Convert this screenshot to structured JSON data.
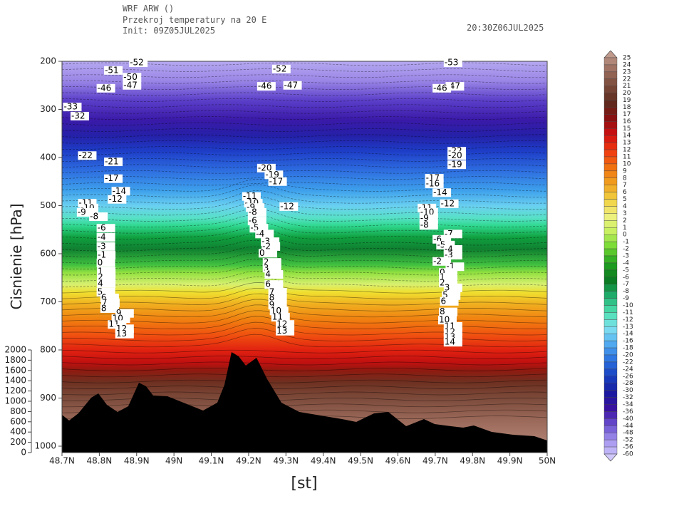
{
  "header": {
    "model": "WRF ARW ()",
    "title": "Przekroj temperatury na 20 E",
    "init": "Init: 09Z05JUL2025",
    "valid": "20:30Z06JUL2025"
  },
  "chart_data": {
    "type": "contour",
    "x_label": "[st]",
    "y_label": "Cisnienie [hPa]",
    "xlim": [
      48.7,
      50
    ],
    "xticks": [
      {
        "value": 48.7,
        "label": "48.7N"
      },
      {
        "value": 48.8,
        "label": "48.8N"
      },
      {
        "value": 48.9,
        "label": "48.9N"
      },
      {
        "value": 49,
        "label": "49N"
      },
      {
        "value": 49.1,
        "label": "49.1N"
      },
      {
        "value": 49.2,
        "label": "49.2N"
      },
      {
        "value": 49.3,
        "label": "49.3N"
      },
      {
        "value": 49.4,
        "label": "49.4N"
      },
      {
        "value": 49.5,
        "label": "49.5N"
      },
      {
        "value": 49.6,
        "label": "49.6N"
      },
      {
        "value": 49.7,
        "label": "49.7N"
      },
      {
        "value": 49.8,
        "label": "49.8N"
      },
      {
        "value": 49.9,
        "label": "49.9N"
      },
      {
        "value": 50,
        "label": "50N"
      }
    ],
    "ylim": [
      1000,
      200
    ],
    "yticks": [
      200,
      300,
      400,
      500,
      600,
      700,
      800,
      900,
      1000
    ],
    "hlim": [
      0,
      2000
    ],
    "hticks": [
      0,
      200,
      400,
      600,
      800,
      1000,
      1200,
      1400,
      1600,
      1800,
      2000
    ],
    "contour_labels": [
      {
        "value": -52,
        "lat": 48.897,
        "p": 203
      },
      {
        "value": -51,
        "lat": 48.83,
        "p": 219
      },
      {
        "value": -50,
        "lat": 48.88,
        "p": 233
      },
      {
        "value": -47,
        "lat": 48.88,
        "p": 250
      },
      {
        "value": -46,
        "lat": 48.81,
        "p": 256
      },
      {
        "value": -52,
        "lat": 49.28,
        "p": 216
      },
      {
        "value": -47,
        "lat": 49.31,
        "p": 250
      },
      {
        "value": -46,
        "lat": 49.24,
        "p": 252
      },
      {
        "value": -53,
        "lat": 49.74,
        "p": 203
      },
      {
        "value": -47,
        "lat": 49.745,
        "p": 252
      },
      {
        "value": -46,
        "lat": 49.71,
        "p": 256
      },
      {
        "value": -33,
        "lat": 48.72,
        "p": 295
      },
      {
        "value": -32,
        "lat": 48.74,
        "p": 314
      },
      {
        "value": -22,
        "lat": 48.76,
        "p": 396
      },
      {
        "value": -21,
        "lat": 48.83,
        "p": 409
      },
      {
        "value": -17,
        "lat": 48.83,
        "p": 444
      },
      {
        "value": -14,
        "lat": 48.85,
        "p": 470
      },
      {
        "value": -12,
        "lat": 48.84,
        "p": 487
      },
      {
        "value": -11,
        "lat": 48.76,
        "p": 495
      },
      {
        "value": -10,
        "lat": 48.765,
        "p": 505
      },
      {
        "value": -9,
        "lat": 48.757,
        "p": 514
      },
      {
        "value": -8,
        "lat": 48.79,
        "p": 523
      },
      {
        "value": -6,
        "lat": 48.81,
        "p": 547
      },
      {
        "value": -4,
        "lat": 48.81,
        "p": 566
      },
      {
        "value": -3,
        "lat": 48.81,
        "p": 585
      },
      {
        "value": -1,
        "lat": 48.811,
        "p": 603
      },
      {
        "value": 0,
        "lat": 48.81,
        "p": 619
      },
      {
        "value": 1,
        "lat": 48.811,
        "p": 637
      },
      {
        "value": 2,
        "lat": 48.811,
        "p": 649
      },
      {
        "value": 4,
        "lat": 48.811,
        "p": 662
      },
      {
        "value": 5,
        "lat": 48.81,
        "p": 680
      },
      {
        "value": 6,
        "lat": 48.82,
        "p": 692
      },
      {
        "value": 7,
        "lat": 48.822,
        "p": 702
      },
      {
        "value": 8,
        "lat": 48.82,
        "p": 714
      },
      {
        "value": 9,
        "lat": 48.86,
        "p": 724
      },
      {
        "value": 10,
        "lat": 48.85,
        "p": 735
      },
      {
        "value": 11,
        "lat": 48.84,
        "p": 747
      },
      {
        "value": 12,
        "lat": 48.86,
        "p": 756
      },
      {
        "value": 13,
        "lat": 48.86,
        "p": 767
      },
      {
        "value": -20,
        "lat": 49.24,
        "p": 422
      },
      {
        "value": -19,
        "lat": 49.26,
        "p": 436
      },
      {
        "value": -17,
        "lat": 49.27,
        "p": 450
      },
      {
        "value": -12,
        "lat": 49.3,
        "p": 502
      },
      {
        "value": -11,
        "lat": 49.2,
        "p": 481
      },
      {
        "value": -10,
        "lat": 49.205,
        "p": 495
      },
      {
        "value": -9,
        "lat": 49.21,
        "p": 504
      },
      {
        "value": -8,
        "lat": 49.215,
        "p": 514
      },
      {
        "value": -6,
        "lat": 49.215,
        "p": 532
      },
      {
        "value": -5,
        "lat": 49.22,
        "p": 547
      },
      {
        "value": -4,
        "lat": 49.235,
        "p": 559
      },
      {
        "value": -3,
        "lat": 49.25,
        "p": 575
      },
      {
        "value": -2,
        "lat": 49.252,
        "p": 585
      },
      {
        "value": 0,
        "lat": 49.244,
        "p": 599
      },
      {
        "value": 2,
        "lat": 49.255,
        "p": 618
      },
      {
        "value": 3,
        "lat": 49.255,
        "p": 630
      },
      {
        "value": 4,
        "lat": 49.26,
        "p": 643
      },
      {
        "value": 6,
        "lat": 49.26,
        "p": 664
      },
      {
        "value": 7,
        "lat": 49.27,
        "p": 680
      },
      {
        "value": 8,
        "lat": 49.27,
        "p": 692
      },
      {
        "value": 9,
        "lat": 49.27,
        "p": 707
      },
      {
        "value": 10,
        "lat": 49.274,
        "p": 719
      },
      {
        "value": 11,
        "lat": 49.278,
        "p": 732
      },
      {
        "value": 12,
        "lat": 49.29,
        "p": 747
      },
      {
        "value": 13,
        "lat": 49.29,
        "p": 761
      },
      {
        "value": -22,
        "lat": 49.75,
        "p": 387
      },
      {
        "value": -20,
        "lat": 49.75,
        "p": 396
      },
      {
        "value": -19,
        "lat": 49.75,
        "p": 415
      },
      {
        "value": -17,
        "lat": 49.69,
        "p": 443
      },
      {
        "value": -16,
        "lat": 49.69,
        "p": 455
      },
      {
        "value": -14,
        "lat": 49.71,
        "p": 473
      },
      {
        "value": -12,
        "lat": 49.73,
        "p": 496
      },
      {
        "value": -11,
        "lat": 49.67,
        "p": 505
      },
      {
        "value": -10,
        "lat": 49.675,
        "p": 514
      },
      {
        "value": -9,
        "lat": 49.675,
        "p": 527
      },
      {
        "value": -8,
        "lat": 49.675,
        "p": 541
      },
      {
        "value": -7,
        "lat": 49.74,
        "p": 559
      },
      {
        "value": -6,
        "lat": 49.71,
        "p": 570
      },
      {
        "value": -5,
        "lat": 49.72,
        "p": 582
      },
      {
        "value": -4,
        "lat": 49.74,
        "p": 591
      },
      {
        "value": -3,
        "lat": 49.74,
        "p": 603
      },
      {
        "value": -2,
        "lat": 49.71,
        "p": 616
      },
      {
        "value": -1,
        "lat": 49.745,
        "p": 627
      },
      {
        "value": 0,
        "lat": 49.727,
        "p": 639
      },
      {
        "value": 1,
        "lat": 49.727,
        "p": 649
      },
      {
        "value": 2,
        "lat": 49.727,
        "p": 661
      },
      {
        "value": 3,
        "lat": 49.74,
        "p": 671
      },
      {
        "value": 5,
        "lat": 49.735,
        "p": 687
      },
      {
        "value": 6,
        "lat": 49.73,
        "p": 699
      },
      {
        "value": 8,
        "lat": 49.727,
        "p": 721
      },
      {
        "value": 10,
        "lat": 49.725,
        "p": 738
      },
      {
        "value": 11,
        "lat": 49.74,
        "p": 751
      },
      {
        "value": 12,
        "lat": 49.74,
        "p": 763
      },
      {
        "value": 13,
        "lat": 49.74,
        "p": 773
      },
      {
        "value": 14,
        "lat": 49.74,
        "p": 784
      }
    ],
    "colorbar": {
      "levels": [
        25,
        24,
        23,
        22,
        21,
        20,
        19,
        18,
        17,
        16,
        15,
        14,
        13,
        12,
        11,
        10,
        9,
        8,
        7,
        6,
        5,
        4,
        3,
        2,
        1,
        0,
        -1,
        -2,
        -3,
        -4,
        -5,
        -6,
        -7,
        -8,
        -9,
        -10,
        -11,
        -12,
        -13,
        -14,
        -16,
        -18,
        -20,
        -22,
        -24,
        -26,
        -28,
        -30,
        -32,
        -34,
        -36,
        -40,
        -44,
        -48,
        -52,
        -56,
        -60
      ],
      "palette": [
        "#c09a8c",
        "#9c6e5e",
        "#7a4a3a",
        "#5e2a1e",
        "#8a1010",
        "#d01010",
        "#f03a10",
        "#f07010",
        "#f0a020",
        "#f0d040",
        "#f0f080",
        "#c8f060",
        "#70d830",
        "#20a020",
        "#0a7a20",
        "#20b070",
        "#50e0b0",
        "#80e0f0",
        "#50a8f0",
        "#2a70e0",
        "#1840c0",
        "#1a1aa0",
        "#3a10a0",
        "#6a50d0",
        "#a898f0",
        "#d0c8fa"
      ]
    }
  }
}
